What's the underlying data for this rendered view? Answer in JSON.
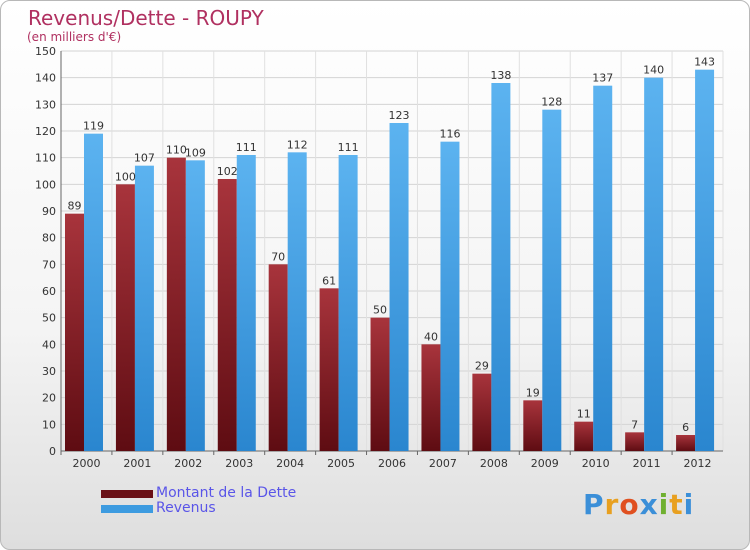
{
  "title": "Revenus/Dette - ROUPY",
  "subtitle": "(en milliers d'€)",
  "colors": {
    "dette": "#8b1a22",
    "revenus": "#3d9be0",
    "title": "#b03060",
    "legend_text": "#5a55e8"
  },
  "chart_data": {
    "type": "bar",
    "title": "Revenus/Dette - ROUPY",
    "subtitle": "(en milliers d'€)",
    "categories": [
      "2000",
      "2001",
      "2002",
      "2003",
      "2004",
      "2005",
      "2006",
      "2007",
      "2008",
      "2009",
      "2010",
      "2011",
      "2012"
    ],
    "series": [
      {
        "name": "Montant de la Dette",
        "color": "#8b1a22",
        "values": [
          89,
          100,
          110,
          102,
          70,
          61,
          50,
          40,
          29,
          19,
          11,
          7,
          6
        ]
      },
      {
        "name": "Revenus",
        "color": "#3d9be0",
        "values": [
          119,
          107,
          109,
          111,
          112,
          111,
          123,
          116,
          138,
          128,
          137,
          140,
          143
        ]
      }
    ],
    "ylim": [
      0,
      150
    ],
    "yticks": [
      0,
      10,
      20,
      30,
      40,
      50,
      60,
      70,
      80,
      90,
      100,
      110,
      120,
      130,
      140,
      150
    ],
    "grid": true,
    "legend_position": "bottom-left"
  },
  "legend": [
    {
      "label": "Montant de la Dette",
      "color": "#8b1a22"
    },
    {
      "label": "Revenus",
      "color": "#3d9be0"
    }
  ],
  "logo": {
    "text": "Proxiti"
  }
}
